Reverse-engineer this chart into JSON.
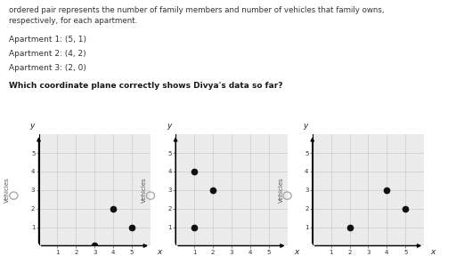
{
  "description_line1": "ordered pair represents the number of family members and number of vehicles that family owns,",
  "description_line2": "respectively, for each apartment.",
  "apartments": [
    "Apartment 1: (5, 1)",
    "Apartment 2: (4, 2)",
    "Apartment 3: (2, 0)"
  ],
  "question": "Which coordinate plane correctly shows Divya's data so far?",
  "plots": [
    {
      "points": [
        [
          4,
          2
        ],
        [
          5,
          1
        ],
        [
          3,
          0
        ]
      ]
    },
    {
      "points": [
        [
          1,
          4
        ],
        [
          2,
          3
        ],
        [
          1,
          1
        ]
      ]
    },
    {
      "points": [
        [
          2,
          1
        ],
        [
          4,
          3
        ],
        [
          5,
          2
        ]
      ]
    }
  ],
  "bg_color": "#ffffff",
  "grid_color": "#d0d0d0",
  "plot_bg": "#ebebeb",
  "point_color": "#111111",
  "xlim": [
    0,
    6.0
  ],
  "ylim": [
    0,
    6.0
  ],
  "xticks": [
    1,
    2,
    3,
    4,
    5
  ],
  "yticks": [
    1,
    2,
    3,
    4,
    5
  ]
}
